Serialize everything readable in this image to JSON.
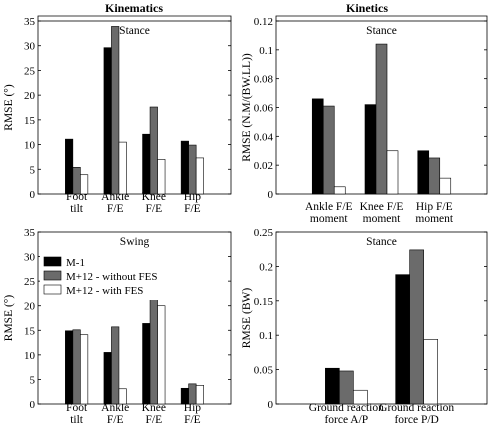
{
  "headers": {
    "left": "Kinematics",
    "right": "Kinetics"
  },
  "legend": [
    {
      "label": "M-1",
      "color": "#000000"
    },
    {
      "label": "M+12 - without FES",
      "color": "#6b6b6b"
    },
    {
      "label": "M+12 - with FES",
      "color": "#ffffff"
    }
  ],
  "chart_data": [
    {
      "type": "bar",
      "title": "Stance",
      "ylabel": "RMSE (°)",
      "ylim": [
        0,
        35
      ],
      "yticks": [
        "0",
        "5",
        "10",
        "15",
        "20",
        "25",
        "30",
        "35"
      ],
      "categories": [
        [
          "Foot",
          "tilt"
        ],
        [
          "Ankle",
          "F/E"
        ],
        [
          "Knee",
          "F/E"
        ],
        [
          "Hip",
          "F/E"
        ]
      ],
      "series": [
        {
          "name": "M-1",
          "values": [
            11.1,
            29.6,
            12.1,
            10.7
          ]
        },
        {
          "name": "M+12 - without FES",
          "values": [
            5.4,
            33.9,
            17.6,
            9.9
          ]
        },
        {
          "name": "M+12 - with FES",
          "values": [
            3.9,
            10.5,
            7.0,
            7.3
          ]
        }
      ]
    },
    {
      "type": "bar",
      "title": "Stance",
      "ylabel": "RMSE (N.M/(BW.LL))",
      "ylim": [
        0,
        0.12
      ],
      "yticks": [
        "0",
        "0.02",
        "0.04",
        "0.06",
        "0.08",
        "0.1",
        "0.12"
      ],
      "categories": [
        [
          "Ankle F/E",
          "moment"
        ],
        [
          "Knee F/E",
          "moment"
        ],
        [
          "Hip F/E",
          "moment"
        ]
      ],
      "series": [
        {
          "name": "M-1",
          "values": [
            0.066,
            0.062,
            0.03
          ]
        },
        {
          "name": "M+12 - without FES",
          "values": [
            0.061,
            0.104,
            0.025
          ]
        },
        {
          "name": "M+12 - with FES",
          "values": [
            0.005,
            0.03,
            0.011
          ]
        }
      ]
    },
    {
      "type": "bar",
      "title": "Swing",
      "ylabel": "RMSE (°)",
      "ylim": [
        0,
        35
      ],
      "yticks": [
        "0",
        "5",
        "10",
        "15",
        "20",
        "25",
        "30",
        "35"
      ],
      "categories": [
        [
          "Foot",
          "tilt"
        ],
        [
          "Ankle",
          "F/E"
        ],
        [
          "Knee",
          "F/E"
        ],
        [
          "Hip",
          "F/E"
        ]
      ],
      "series": [
        {
          "name": "M-1",
          "values": [
            14.9,
            10.5,
            16.4,
            3.2
          ]
        },
        {
          "name": "M+12 - without FES",
          "values": [
            15.1,
            15.7,
            23.7,
            4.1
          ]
        },
        {
          "name": "M+12 - with FES",
          "values": [
            14.1,
            3.1,
            20.0,
            3.8
          ]
        }
      ]
    },
    {
      "type": "bar",
      "title": "Stance",
      "ylabel": "RMSE (BW)",
      "ylim": [
        0,
        0.25
      ],
      "yticks": [
        "0",
        "0.05",
        "0.1",
        "0.15",
        "0.2",
        "0.25"
      ],
      "categories": [
        [
          "Ground reaction",
          "force A/P"
        ],
        [
          "Ground reaction",
          "force P/D"
        ]
      ],
      "series": [
        {
          "name": "M-1",
          "values": [
            0.052,
            0.188
          ]
        },
        {
          "name": "M+12 - without FES",
          "values": [
            0.048,
            0.224
          ]
        },
        {
          "name": "M+12 - with FES",
          "values": [
            0.02,
            0.094
          ]
        }
      ]
    }
  ]
}
